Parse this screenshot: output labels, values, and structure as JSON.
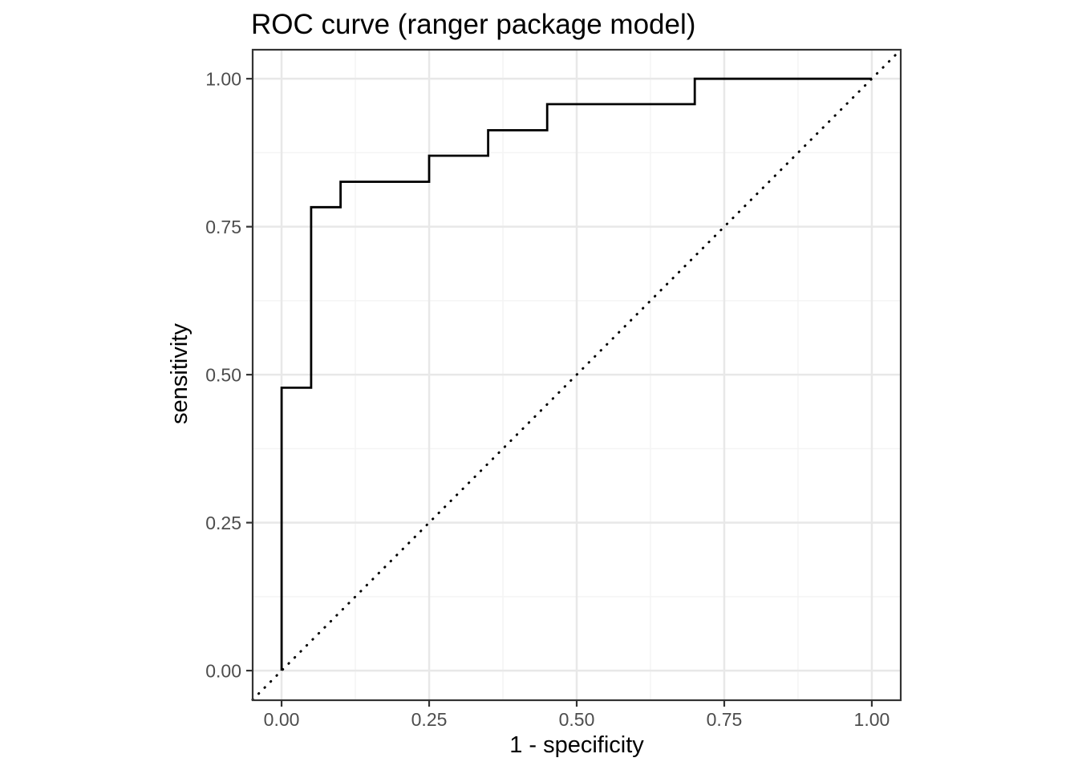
{
  "chart_data": {
    "type": "line",
    "subtype": "roc-step-curve",
    "title": "ROC curve (ranger package model)",
    "xlabel": "1 - specificity",
    "ylabel": "sensitivity",
    "xlim": [
      -0.049,
      1.049
    ],
    "ylim": [
      -0.05,
      1.049
    ],
    "x_ticks": {
      "values": [
        0,
        0.25,
        0.5,
        0.75,
        1
      ],
      "labels": [
        "0.00",
        "0.25",
        "0.50",
        "0.75",
        "1.00"
      ]
    },
    "y_ticks": {
      "values": [
        0,
        0.25,
        0.5,
        0.75,
        1
      ],
      "labels": [
        "0.00",
        "0.25",
        "0.50",
        "0.75",
        "1.00"
      ]
    },
    "x_minor_gridlines": [
      0.125,
      0.375,
      0.625,
      0.875
    ],
    "y_minor_gridlines": [
      0.125,
      0.375,
      0.625,
      0.875
    ],
    "grid": "major+minor",
    "legend_position": "none",
    "series": [
      {
        "name": "roc-curve",
        "type": "step",
        "line_style": "solid",
        "color": "#000000",
        "points": [
          [
            0.0,
            0.0
          ],
          [
            0.0,
            0.478
          ],
          [
            0.05,
            0.478
          ],
          [
            0.05,
            0.783
          ],
          [
            0.1,
            0.783
          ],
          [
            0.1,
            0.826
          ],
          [
            0.25,
            0.826
          ],
          [
            0.25,
            0.87
          ],
          [
            0.35,
            0.87
          ],
          [
            0.35,
            0.913
          ],
          [
            0.45,
            0.913
          ],
          [
            0.45,
            0.957
          ],
          [
            0.7,
            0.957
          ],
          [
            0.7,
            1.0
          ],
          [
            1.0,
            1.0
          ]
        ]
      },
      {
        "name": "chance-diagonal",
        "type": "line",
        "line_style": "dotted",
        "color": "#000000",
        "points": [
          [
            -0.049,
            -0.049
          ],
          [
            1.049,
            1.049
          ]
        ]
      }
    ]
  },
  "colors": {
    "page_background": "#ffffff",
    "panel_background": "#ffffff",
    "panel_border": "#333333",
    "grid_major": "#e8e8e8",
    "grid_minor": "#f4f4f4",
    "tick_mark": "#333333",
    "tick_label": "#4d4d4d",
    "axis_title": "#000000",
    "chart_title": "#000000",
    "curve": "#000000"
  }
}
